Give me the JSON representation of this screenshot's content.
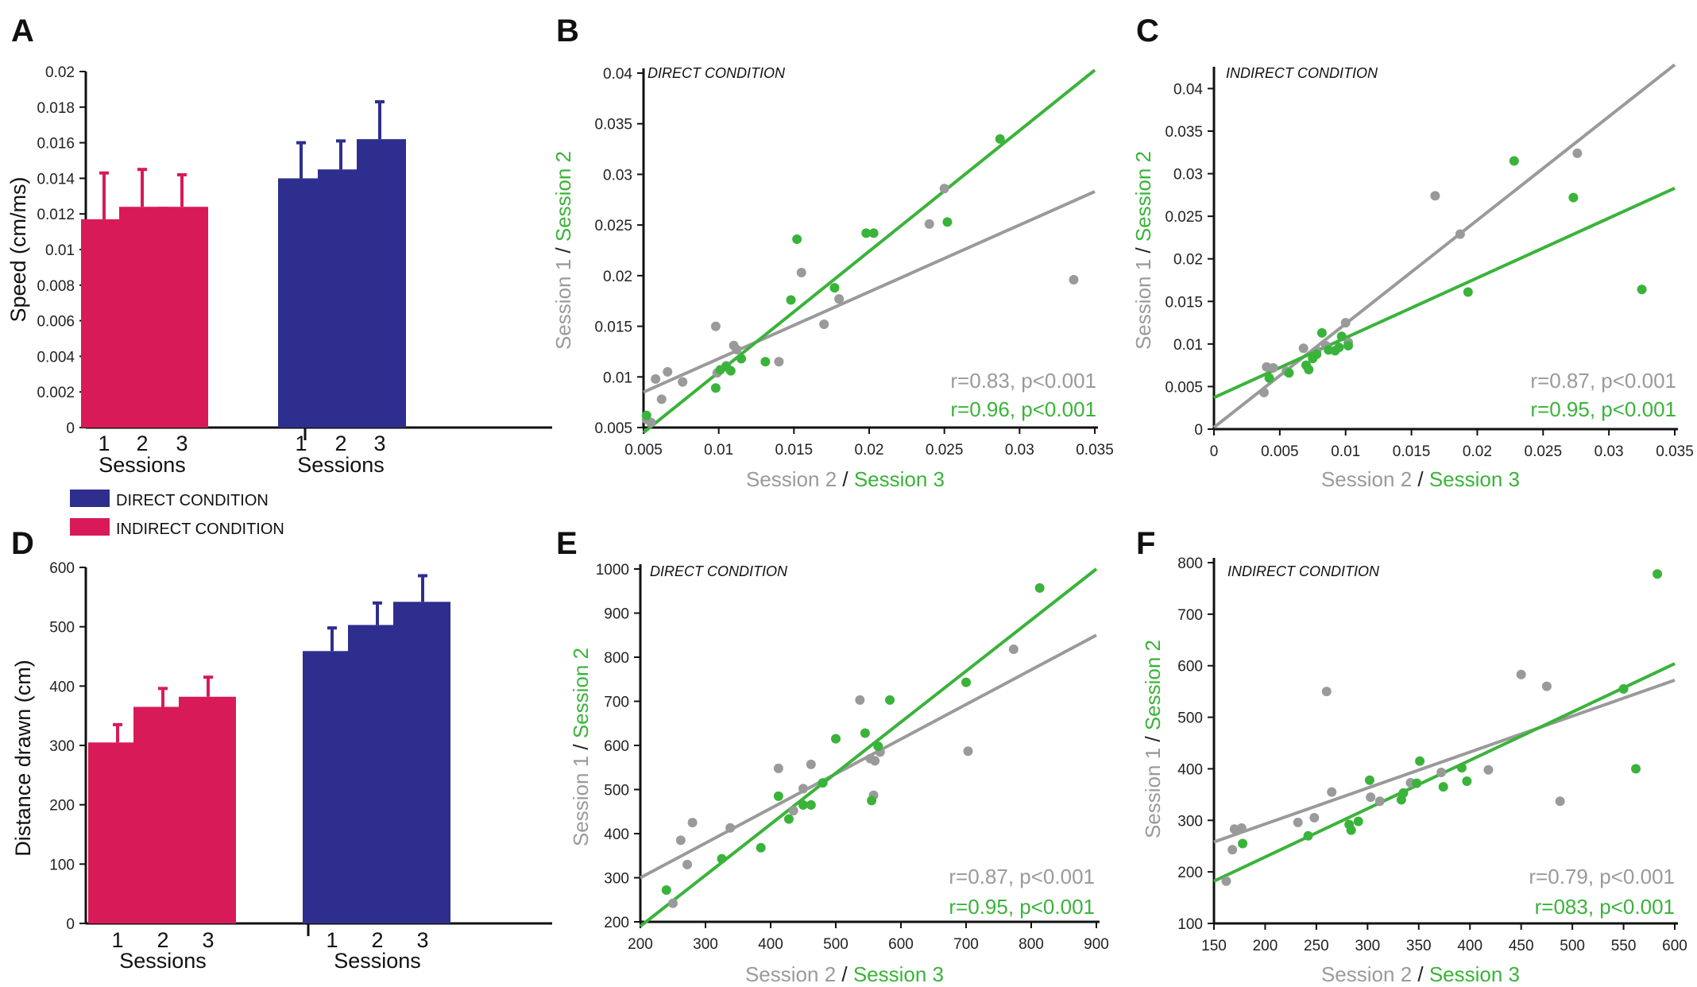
{
  "colors": {
    "direct": "#2e2e8f",
    "indirect": "#d81b58",
    "gray": "#9a9a9a",
    "green": "#3ab33a"
  },
  "legend": {
    "direct": "DIRECT CONDITION",
    "indirect": "INDIRECT CONDITION"
  },
  "chart_data": [
    {
      "panel": "A",
      "type": "bar",
      "ylabel": "Speed (cm/ms)",
      "xlabel": "Sessions",
      "ylim": [
        0,
        0.02
      ],
      "yticks": [
        "0",
        "0.002",
        "0.004",
        "0.006",
        "0.008",
        "0.01",
        "0.012",
        "0.014",
        "0.016",
        "0.018",
        "0.02"
      ],
      "groups": [
        {
          "name": "INDIRECT CONDITION",
          "categories": [
            "1",
            "2",
            "3"
          ],
          "values": [
            0.0117,
            0.0124,
            0.0124
          ],
          "errors": [
            0.0026,
            0.0021,
            0.0018
          ]
        },
        {
          "name": "DIRECT CONDITION",
          "categories": [
            "1",
            "2",
            "3"
          ],
          "values": [
            0.014,
            0.0145,
            0.0162
          ],
          "errors": [
            0.002,
            0.0016,
            0.0021
          ]
        }
      ]
    },
    {
      "panel": "D",
      "type": "bar",
      "ylabel": "Distance drawn (cm)",
      "xlabel": "Sessions",
      "ylim": [
        0,
        600
      ],
      "yticks": [
        "0",
        "100",
        "200",
        "300",
        "400",
        "500",
        "600"
      ],
      "groups": [
        {
          "name": "INDIRECT CONDITION",
          "categories": [
            "1",
            "2",
            "3"
          ],
          "values": [
            305,
            365,
            382
          ],
          "errors": [
            30,
            31,
            33
          ]
        },
        {
          "name": "DIRECT CONDITION",
          "categories": [
            "1",
            "2",
            "3"
          ],
          "values": [
            459,
            503,
            542
          ],
          "errors": [
            39,
            37,
            44
          ]
        }
      ]
    },
    {
      "panel": "B",
      "type": "scatter",
      "condition": "DIRECT CONDITION",
      "xlim": [
        0.005,
        0.035
      ],
      "ylim": [
        0.005,
        0.04
      ],
      "xticks": [
        "0.005",
        "0.01",
        "0.015",
        "0.02",
        "0.025",
        "0.03",
        "0.035"
      ],
      "yticks": [
        "0.005",
        "0.01",
        "0.015",
        "0.02",
        "0.025",
        "0.03",
        "0.035",
        "0.04"
      ],
      "ylabel": {
        "s1": "Session 1",
        "sep": " / ",
        "s2": "Session 2"
      },
      "xlabel": {
        "s2": "Session 2",
        "sep": " / ",
        "s3": "Session 3"
      },
      "series": [
        {
          "name": "Session 1 vs Session 2",
          "color": "gray",
          "stat": "r=0.83, p<0.001",
          "fit": [
            [
              0.005,
              0.0085
            ],
            [
              0.035,
              0.0283
            ]
          ],
          "points": [
            [
              0.0052,
              0.0058
            ],
            [
              0.0055,
              0.0055
            ],
            [
              0.0058,
              0.0098
            ],
            [
              0.0062,
              0.0078
            ],
            [
              0.0066,
              0.0105
            ],
            [
              0.0076,
              0.0095
            ],
            [
              0.0098,
              0.015
            ],
            [
              0.0099,
              0.0104
            ],
            [
              0.0105,
              0.0111
            ],
            [
              0.011,
              0.0131
            ],
            [
              0.0112,
              0.0127
            ],
            [
              0.014,
              0.0115
            ],
            [
              0.0155,
              0.0203
            ],
            [
              0.017,
              0.0152
            ],
            [
              0.018,
              0.0177
            ],
            [
              0.024,
              0.0251
            ],
            [
              0.025,
              0.0286
            ],
            [
              0.0336,
              0.0196
            ]
          ]
        },
        {
          "name": "Session 2 vs Session 3",
          "color": "green",
          "stat": "r=0.96, p<0.001",
          "fit": [
            [
              0.005,
              0.0045
            ],
            [
              0.035,
              0.0403
            ]
          ],
          "points": [
            [
              0.0052,
              0.0062
            ],
            [
              0.0098,
              0.0089
            ],
            [
              0.0101,
              0.0107
            ],
            [
              0.0105,
              0.011
            ],
            [
              0.0108,
              0.0106
            ],
            [
              0.0115,
              0.0118
            ],
            [
              0.0131,
              0.0115
            ],
            [
              0.0148,
              0.0176
            ],
            [
              0.0152,
              0.0236
            ],
            [
              0.0177,
              0.0188
            ],
            [
              0.0198,
              0.0242
            ],
            [
              0.0203,
              0.0242
            ],
            [
              0.0252,
              0.0253
            ],
            [
              0.0287,
              0.0335
            ]
          ]
        }
      ]
    },
    {
      "panel": "C",
      "type": "scatter",
      "condition": "INDIRECT CONDITION",
      "xlim": [
        0,
        0.035
      ],
      "ylim": [
        0,
        0.042
      ],
      "xticks": [
        "0",
        "0.005",
        "0.01",
        "0.015",
        "0.02",
        "0.025",
        "0.03",
        "0.035"
      ],
      "yticks": [
        "0",
        "0.005",
        "0.01",
        "0.015",
        "0.02",
        "0.025",
        "0.03",
        "0.035",
        "0.04"
      ],
      "ylabel": {
        "s1": "Session 1",
        "sep": " / ",
        "s2": "Session 2"
      },
      "xlabel": {
        "s2": "Session 2",
        "sep": " / ",
        "s3": "Session 3"
      },
      "series": [
        {
          "name": "Session 1 vs Session 2",
          "color": "gray",
          "stat": "r=0.87, p<0.001",
          "fit": [
            [
              0,
              0.0002
            ],
            [
              0.035,
              0.0428
            ]
          ],
          "points": [
            [
              0.0038,
              0.0043
            ],
            [
              0.004,
              0.0073
            ],
            [
              0.0045,
              0.0072
            ],
            [
              0.0055,
              0.0068
            ],
            [
              0.0068,
              0.0095
            ],
            [
              0.0078,
              0.0092
            ],
            [
              0.0085,
              0.0098
            ],
            [
              0.01,
              0.0125
            ],
            [
              0.0102,
              0.0102
            ],
            [
              0.0168,
              0.0274
            ],
            [
              0.0187,
              0.0229
            ],
            [
              0.0276,
              0.0324
            ]
          ]
        },
        {
          "name": "Session 2 vs Session 3",
          "color": "green",
          "stat": "r=0.95, p<0.001",
          "fit": [
            [
              0,
              0.0037
            ],
            [
              0.035,
              0.0283
            ]
          ],
          "points": [
            [
              0.0042,
              0.006
            ],
            [
              0.0057,
              0.0066
            ],
            [
              0.007,
              0.0075
            ],
            [
              0.0072,
              0.007
            ],
            [
              0.0075,
              0.0083
            ],
            [
              0.0078,
              0.0088
            ],
            [
              0.0082,
              0.0113
            ],
            [
              0.0087,
              0.0093
            ],
            [
              0.0092,
              0.0092
            ],
            [
              0.0095,
              0.0096
            ],
            [
              0.0097,
              0.0109
            ],
            [
              0.0102,
              0.0098
            ],
            [
              0.0228,
              0.0315
            ],
            [
              0.0193,
              0.0161
            ],
            [
              0.0273,
              0.0272
            ],
            [
              0.0325,
              0.0164
            ]
          ]
        }
      ]
    },
    {
      "panel": "E",
      "type": "scatter",
      "condition": "DIRECT CONDITION",
      "xlim": [
        200,
        900
      ],
      "ylim": [
        200,
        1000
      ],
      "xticks": [
        "200",
        "300",
        "400",
        "500",
        "600",
        "700",
        "800",
        "900"
      ],
      "yticks": [
        "200",
        "300",
        "400",
        "500",
        "600",
        "700",
        "800",
        "900",
        "1000"
      ],
      "ylabel": {
        "s1": "Session 1",
        "sep": " / ",
        "s2": "Session 2"
      },
      "xlabel": {
        "s2": "Session 2",
        "sep": " / ",
        "s3": "Session 3"
      },
      "series": [
        {
          "name": "Session 1 vs Session 2",
          "color": "gray",
          "stat": "r=0.87, p<0.001",
          "fit": [
            [
              200,
              300
            ],
            [
              900,
              850
            ]
          ],
          "points": [
            [
              250,
              242
            ],
            [
              262,
              385
            ],
            [
              272,
              330
            ],
            [
              280,
              425
            ],
            [
              338,
              413
            ],
            [
              412,
              548
            ],
            [
              435,
              452
            ],
            [
              450,
              502
            ],
            [
              462,
              557
            ],
            [
              537,
              703
            ],
            [
              553,
              570
            ],
            [
              558,
              487
            ],
            [
              560,
              565
            ],
            [
              568,
              585
            ],
            [
              703,
              587
            ],
            [
              773,
              818
            ]
          ]
        },
        {
          "name": "Session 2 vs Session 3",
          "color": "green",
          "stat": "r=0.95, p<0.001",
          "fit": [
            [
              200,
              190
            ],
            [
              900,
              1000
            ]
          ],
          "points": [
            [
              240,
              272
            ],
            [
              325,
              343
            ],
            [
              385,
              368
            ],
            [
              412,
              485
            ],
            [
              428,
              433
            ],
            [
              450,
              465
            ],
            [
              462,
              465
            ],
            [
              480,
              515
            ],
            [
              500,
              615
            ],
            [
              545,
              628
            ],
            [
              555,
              475
            ],
            [
              565,
              598
            ],
            [
              583,
              703
            ],
            [
              700,
              743
            ],
            [
              813,
              957
            ]
          ]
        }
      ]
    },
    {
      "panel": "F",
      "type": "scatter",
      "condition": "INDIRECT CONDITION",
      "xlim": [
        150,
        600
      ],
      "ylim": [
        100,
        800
      ],
      "xticks": [
        "150",
        "200",
        "250",
        "300",
        "350",
        "400",
        "450",
        "500",
        "550",
        "600"
      ],
      "yticks": [
        "100",
        "200",
        "300",
        "400",
        "500",
        "600",
        "700",
        "800"
      ],
      "ylabel": {
        "s1": "Session 1",
        "sep": " / ",
        "s2": "Session 2"
      },
      "xlabel": {
        "s2": "Session 2",
        "sep": " / ",
        "s3": "Session 3"
      },
      "series": [
        {
          "name": "Session 1 vs Session 2",
          "color": "gray",
          "stat": "r=0.79, p<0.001",
          "fit": [
            [
              150,
              258
            ],
            [
              600,
              572
            ]
          ],
          "points": [
            [
              162,
              182
            ],
            [
              168,
              243
            ],
            [
              170,
              283
            ],
            [
              177,
              285
            ],
            [
              232,
              296
            ],
            [
              248,
              305
            ],
            [
              260,
              550
            ],
            [
              265,
              355
            ],
            [
              303,
              345
            ],
            [
              312,
              337
            ],
            [
              342,
              373
            ],
            [
              372,
              393
            ],
            [
              418,
              398
            ],
            [
              450,
              583
            ],
            [
              475,
              560
            ],
            [
              488,
              337
            ]
          ]
        },
        {
          "name": "Session 2 vs Session 3",
          "color": "green",
          "stat": "r=083, p<0.001",
          "fit": [
            [
              150,
              182
            ],
            [
              600,
              604
            ]
          ],
          "points": [
            [
              178,
              255
            ],
            [
              242,
              270
            ],
            [
              282,
              292
            ],
            [
              284,
              281
            ],
            [
              291,
              298
            ],
            [
              302,
              378
            ],
            [
              333,
              340
            ],
            [
              335,
              353
            ],
            [
              348,
              372
            ],
            [
              351,
              415
            ],
            [
              374,
              365
            ],
            [
              392,
              402
            ],
            [
              397,
              376
            ],
            [
              550,
              555
            ],
            [
              562,
              400
            ],
            [
              583,
              778
            ]
          ]
        }
      ]
    }
  ]
}
